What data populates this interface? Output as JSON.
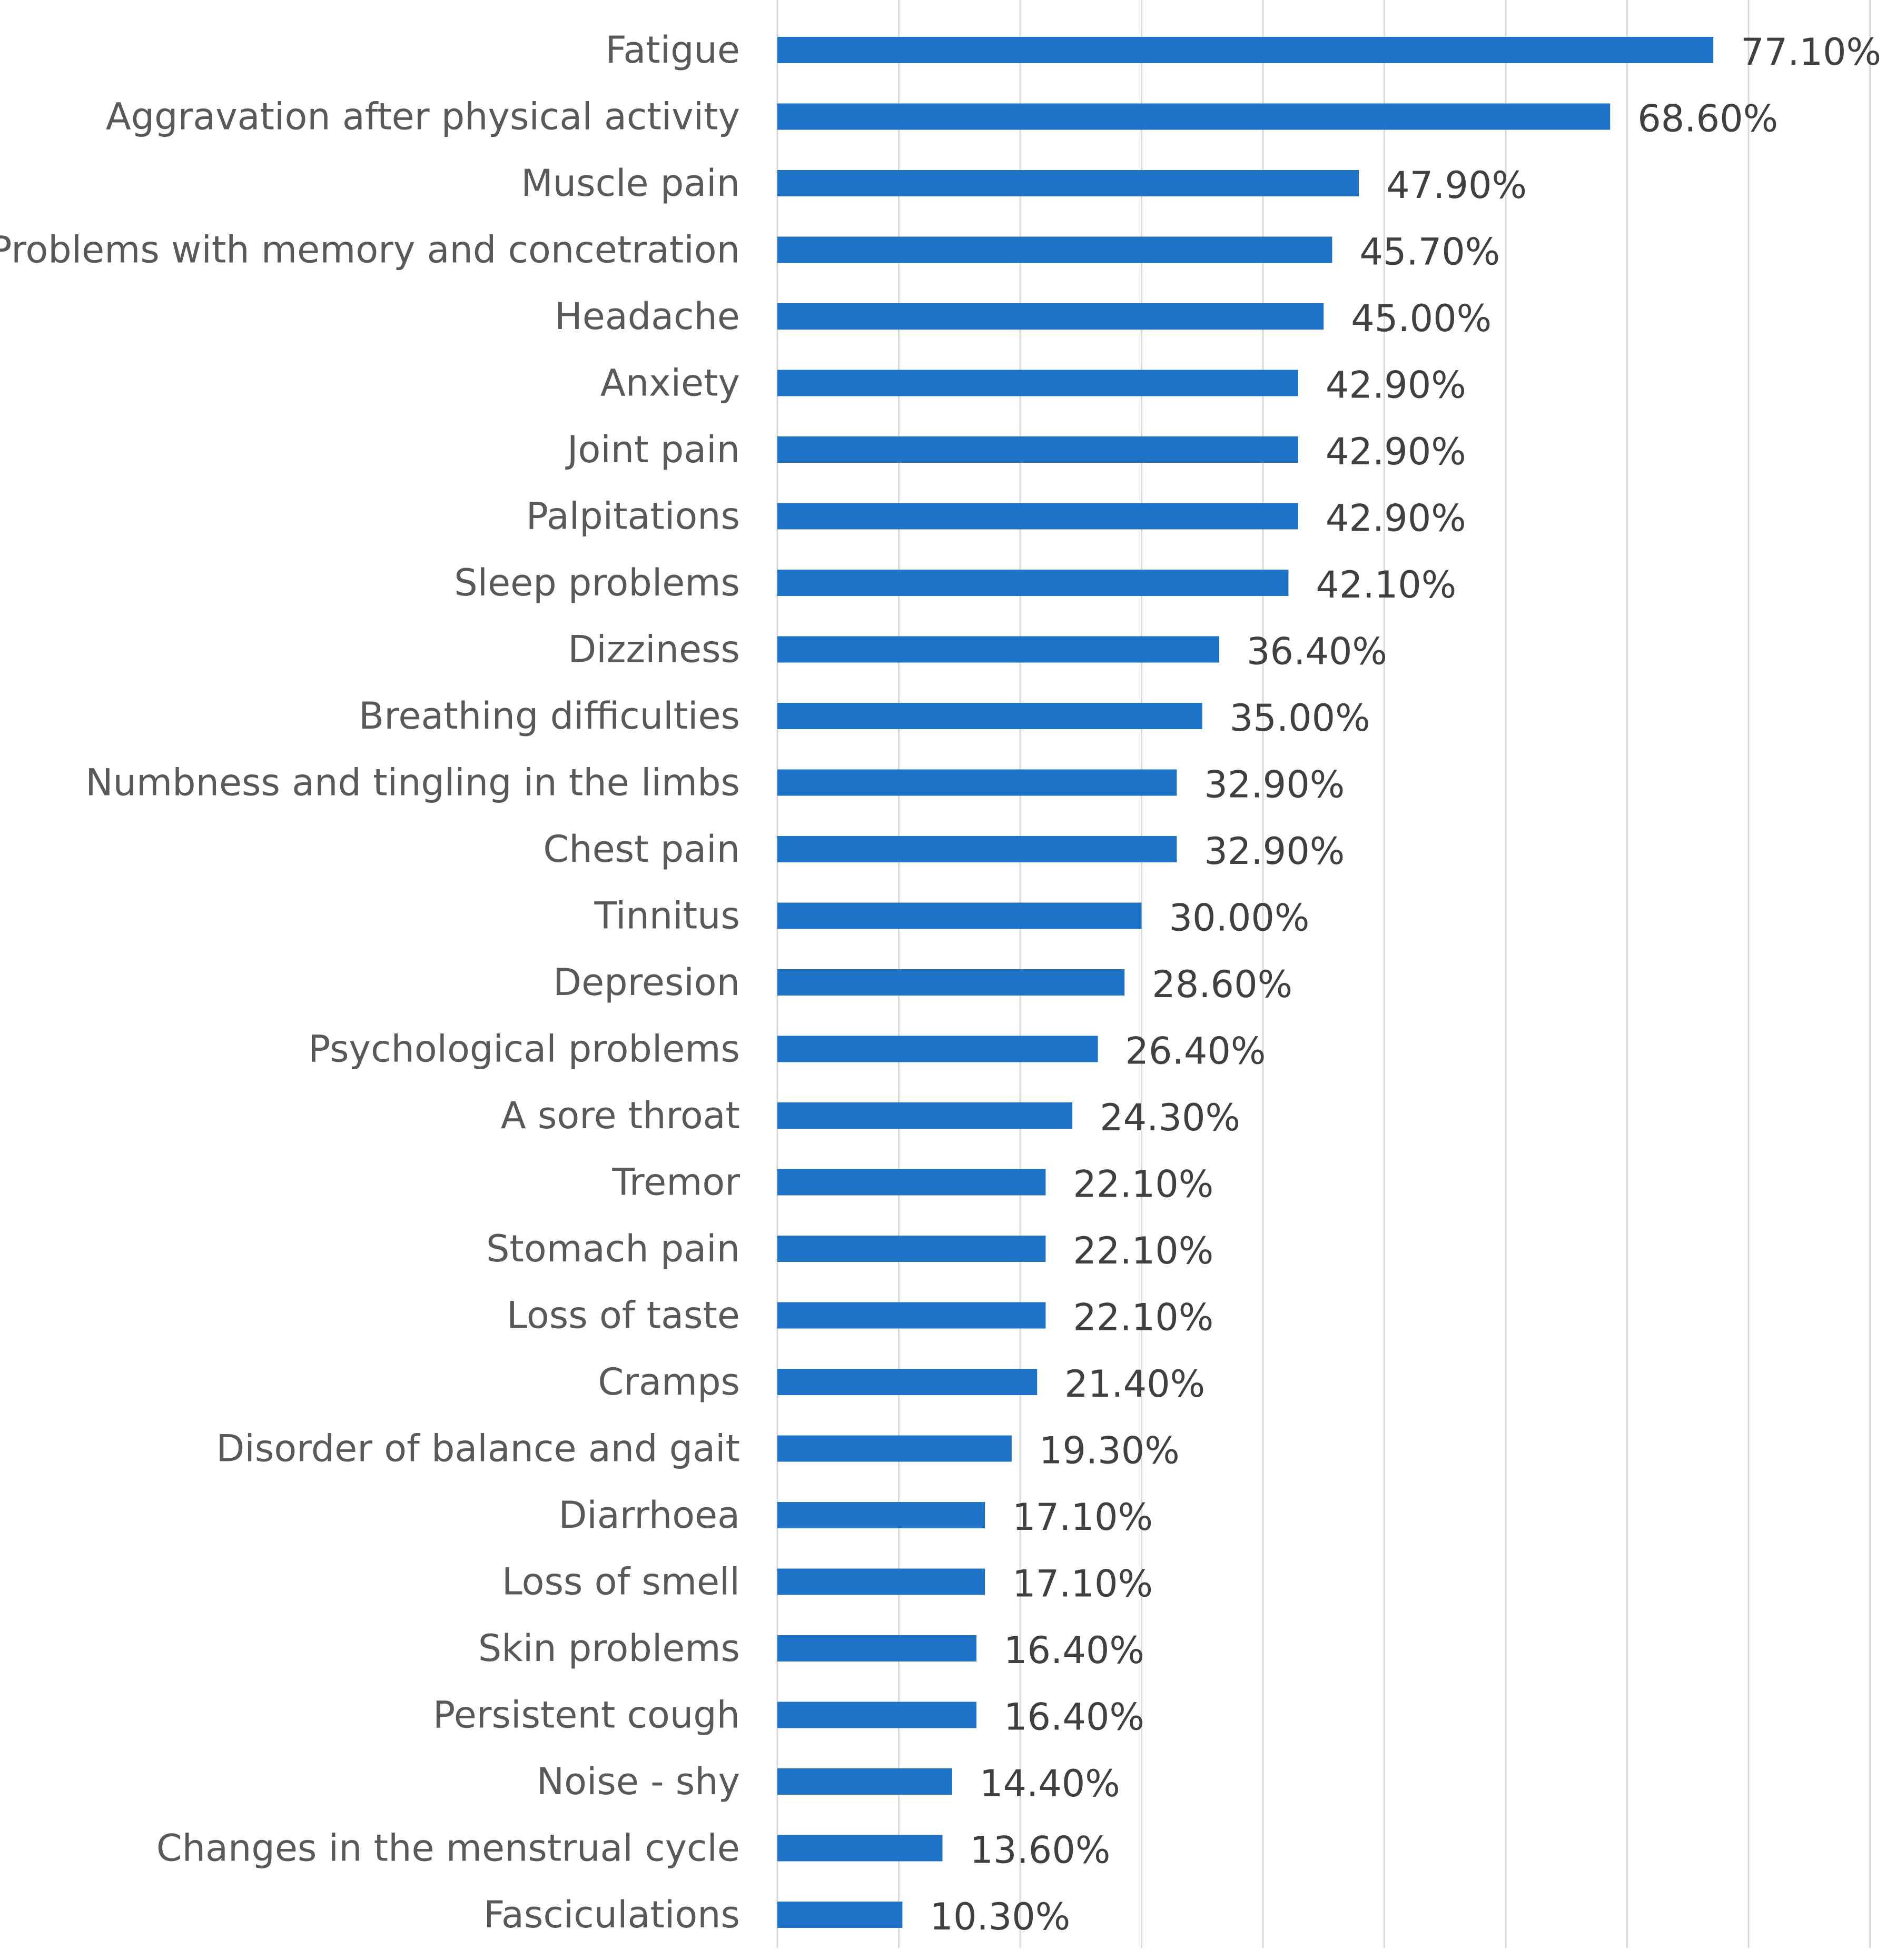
{
  "chart_data": {
    "type": "bar",
    "orientation": "horizontal",
    "title": "",
    "xlabel": "",
    "ylabel": "",
    "xlim": [
      0,
      90
    ],
    "grid": "vertical",
    "legend": "none",
    "bar_color": "#1f73c6",
    "gridline_color": "#d9d9d9",
    "value_format": "percent, two decimals",
    "categories": [
      "Fatigue",
      "Aggravation after physical activity",
      "Muscle pain",
      "Problems with memory and concetration",
      "Headache",
      "Anxiety",
      "Joint pain",
      "Palpitations",
      "Sleep problems",
      "Dizziness",
      "Breathing difficulties",
      "Numbness and tingling in the limbs",
      "Chest pain",
      "Tinnitus",
      "Depresion",
      "Psychological problems",
      "A sore throat",
      "Tremor",
      "Stomach pain",
      "Loss of taste",
      "Cramps",
      "Disorder of balance and gait",
      "Diarrhoea",
      "Loss of smell",
      "Skin problems",
      "Persistent cough",
      "Noise - shy",
      "Changes in the menstrual cycle",
      "Fasciculations"
    ],
    "values": [
      77.1,
      68.6,
      47.9,
      45.7,
      45.0,
      42.9,
      42.9,
      42.9,
      42.1,
      36.4,
      35.0,
      32.9,
      32.9,
      30.0,
      28.6,
      26.4,
      24.3,
      22.1,
      22.1,
      22.1,
      21.4,
      19.3,
      17.1,
      17.1,
      16.4,
      16.4,
      14.4,
      13.6,
      10.3
    ],
    "value_labels": [
      "77.10%",
      "68.60%",
      "47.90%",
      "45.70%",
      "45.00%",
      "42.90%",
      "42.90%",
      "42.90%",
      "42.10%",
      "36.40%",
      "35.00%",
      "32.90%",
      "32.90%",
      "30.00%",
      "28.60%",
      "26.40%",
      "24.30%",
      "22.10%",
      "22.10%",
      "22.10%",
      "21.40%",
      "19.30%",
      "17.10%",
      "17.10%",
      "16.40%",
      "16.40%",
      "14.40%",
      "13.60%",
      "10.30%"
    ]
  }
}
